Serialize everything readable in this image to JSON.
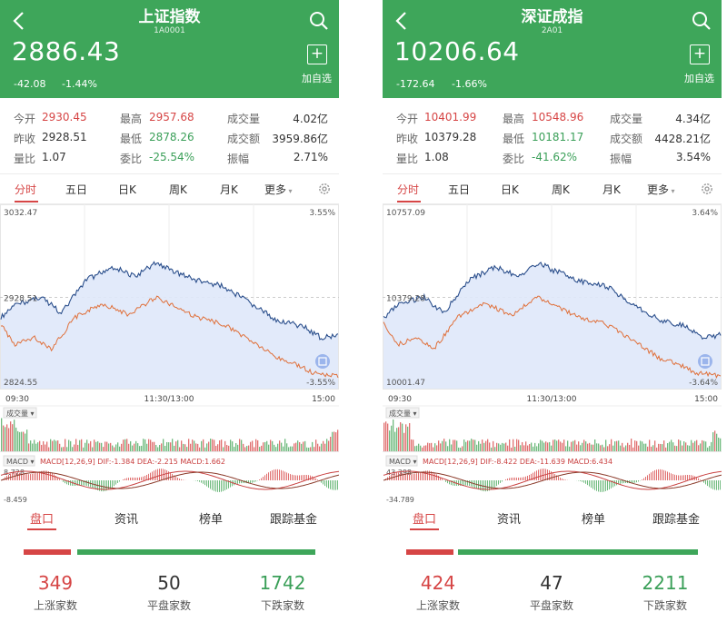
{
  "panels": [
    {
      "title": "上证指数",
      "code": "1A0001",
      "price": "2886.43",
      "change": "-42.08",
      "change_pct": "-1.44%",
      "add_label": "加自选",
      "stats": [
        {
          "label": "今开",
          "value": "2930.45",
          "color": "red"
        },
        {
          "label": "最高",
          "value": "2957.68",
          "color": "red"
        },
        {
          "label": "成交量",
          "value": "4.02亿",
          "color": "dark"
        },
        {
          "label": "昨收",
          "value": "2928.51",
          "color": "dark"
        },
        {
          "label": "最低",
          "value": "2878.26",
          "color": "green"
        },
        {
          "label": "成交额",
          "value": "3959.86亿",
          "color": "dark"
        },
        {
          "label": "量比",
          "value": "1.07",
          "color": "dark"
        },
        {
          "label": "委比",
          "value": "-25.54%",
          "color": "green"
        },
        {
          "label": "振幅",
          "value": "2.71%",
          "color": "dark"
        }
      ],
      "tabs": [
        "分时",
        "五日",
        "日K",
        "周K",
        "月K",
        "更多"
      ],
      "chart": {
        "y_top": "3032.47",
        "y_mid": "2928.51",
        "y_bot": "2824.55",
        "pct_top": "3.55%",
        "pct_bot": "-3.55%",
        "t_start": "09:30",
        "t_mid": "11:30/13:00",
        "t_end": "15:00",
        "volume_label": "成交量",
        "macd_label": "MACD",
        "macd_info": "MACD[12,26,9] DIF:-1.384 DEA:-2.215 MACD:1.662",
        "macd_top": "8.728",
        "macd_bot": "-8.459"
      },
      "bottom_tabs": [
        "盘口",
        "资讯",
        "榜单",
        "跟踪基金"
      ],
      "counts": [
        {
          "value": "349",
          "label": "上涨家数",
          "color": "red"
        },
        {
          "value": "50",
          "label": "平盘家数",
          "color": "dark"
        },
        {
          "value": "1742",
          "label": "下跌家数",
          "color": "green"
        }
      ]
    },
    {
      "title": "深证成指",
      "code": "2A01",
      "price": "10206.64",
      "change": "-172.64",
      "change_pct": "-1.66%",
      "add_label": "加自选",
      "stats": [
        {
          "label": "今开",
          "value": "10401.99",
          "color": "red"
        },
        {
          "label": "最高",
          "value": "10548.96",
          "color": "red"
        },
        {
          "label": "成交量",
          "value": "4.34亿",
          "color": "dark"
        },
        {
          "label": "昨收",
          "value": "10379.28",
          "color": "dark"
        },
        {
          "label": "最低",
          "value": "10181.17",
          "color": "green"
        },
        {
          "label": "成交额",
          "value": "4428.21亿",
          "color": "dark"
        },
        {
          "label": "量比",
          "value": "1.08",
          "color": "dark"
        },
        {
          "label": "委比",
          "value": "-41.62%",
          "color": "green"
        },
        {
          "label": "振幅",
          "value": "3.54%",
          "color": "dark"
        }
      ],
      "tabs": [
        "分时",
        "五日",
        "日K",
        "周K",
        "月K",
        "更多"
      ],
      "chart": {
        "y_top": "10757.09",
        "y_mid": "10379.28",
        "y_bot": "10001.47",
        "pct_top": "3.64%",
        "pct_bot": "-3.64%",
        "t_start": "09:30",
        "t_mid": "11:30/13:00",
        "t_end": "15:00",
        "volume_label": "成交量",
        "macd_label": "MACD",
        "macd_info": "MACD[12,26,9] DIF:-8.422 DEA:-11.639 MACD:6.434",
        "macd_top": "43.398",
        "macd_bot": "-34.789"
      },
      "bottom_tabs": [
        "盘口",
        "资讯",
        "榜单",
        "跟踪基金"
      ],
      "counts": [
        {
          "value": "424",
          "label": "上涨家数",
          "color": "red"
        },
        {
          "value": "47",
          "label": "平盘家数",
          "color": "dark"
        },
        {
          "value": "2211",
          "label": "下跌家数",
          "color": "green"
        }
      ]
    }
  ],
  "colors": {
    "header_green": "#3ea65a",
    "up_red": "#d64545",
    "down_green": "#3a9f58",
    "price_line": "#2b4f8c",
    "avg_line": "#e0703a",
    "fill": "#dfe8fa"
  }
}
